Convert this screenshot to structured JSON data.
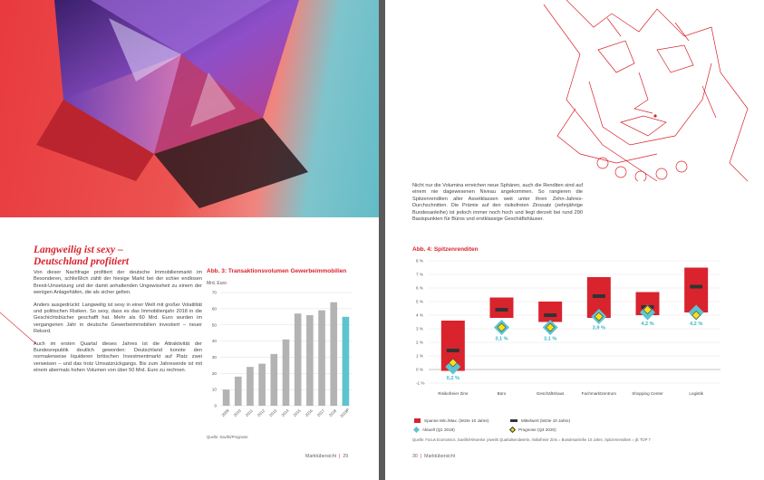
{
  "left_page": {
    "headline_line1": "Langweilig ist sexy –",
    "headline_line2": "Deutschland profitiert",
    "paragraphs": [
      "Von dieser Nachfrage profitiert der deutsche Immobilienmarkt im Besonderen, schließlich zählt der hiesige Markt bei der schier endlosen Brexit-Umsetzung und der damit anhaltenden Ungewissheit zu einem der wenigen Anlagehäfen, die als sicher gelten.",
      "Anders ausgedrückt: Langweilig ist sexy in einer Welt mit großer Volatilität und politischen Risiken. So sexy, dass es das Immobilienjahr 2018 in die Geschichtsbücher geschafft hat. Mehr als 60 Mrd. Euro wurden im vergangenen Jahr in deutsche Gewerbeimmobilien investiert – neuer Rekord.",
      "Auch im ersten Quartal dieses Jahres ist die Attraktivität der Bundesrepublik deutlich geworden: Deutschland konnte den normalerweise liquideren britischen Investmentmarkt auf Platz zwei verweisen – und das trotz Umsatzrückgangs. Bis zum Jahresende ist mit einem abermals hohen Volumen von über 50 Mrd. Euro zu rechnen."
    ],
    "chart_title": "Abb. 3: Transaktionsvolumen Gewerbeimmobilien",
    "unit_label": "Mrd. Euro",
    "source": "Quelle: Savills/Prognose",
    "footer_section": "Marktübersicht",
    "footer_page": "29"
  },
  "right_page": {
    "paragraph": "Nicht nur die Volumina erreichen neue Sphären, auch die Renditen sind auf einem nie dagewesenen Niveau angekommen. So rangieren die Spitzenrenditen aller Assetklassen weit unter ihren Zehn-Jahres-Durchschnitten. Die Prämie auf den risikofreien Zinssatz (zehnjährige Bundesanleihe) ist jedoch immer noch hoch und liegt derzeit bei rund 290 Basispunkten für Büros und erstklassige Geschäftshäuser.",
    "chart_title": "Abb. 4: Spitzenrenditen",
    "legend": {
      "range": "Spanne Min./Max. (letzte 10 Jahre)",
      "mean": "Mittelwert (letzte 10 Jahre)",
      "current": "Aktuell (Q1 2019)",
      "forecast": "Prognose (Q4 2020)"
    },
    "source": "Quelle: Focus Economics, Savills/Hinweise: jeweils Quartalsendwerte, risikofreier Zins = Bundesanleihe 10 Jahre, Spitzenrenditen = jE TOP 7",
    "footer_page": "30",
    "footer_section": "Marktübersicht"
  },
  "colors": {
    "accent_red": "#d9232d",
    "bar_grey": "#b3b3b3",
    "bar_teal": "#5cc4cf",
    "diamond_yellow": "#f5e01a",
    "mean_dark": "#333333"
  },
  "chart_data": [
    {
      "type": "bar",
      "title": "Abb. 3: Transaktionsvolumen Gewerbeimmobilien",
      "ylabel": "Mrd. Euro",
      "categories": [
        "2009",
        "2010",
        "2011",
        "2012",
        "2013",
        "2014",
        "2015",
        "2016",
        "2017",
        "2018",
        "2019P"
      ],
      "values": [
        10,
        18,
        24,
        26,
        32,
        41,
        57,
        56,
        59,
        64,
        55
      ],
      "highlight_last": true,
      "yticks": [
        0,
        10,
        20,
        30,
        40,
        50,
        60,
        70
      ],
      "ylim": [
        0,
        70
      ],
      "grid": true
    },
    {
      "type": "range",
      "title": "Abb. 4: Spitzenrenditen",
      "categories": [
        "Risikofreier Zins",
        "Büro",
        "Geschäftshaus",
        "Fachmarktzentrum",
        "Shopping Center",
        "Logistik"
      ],
      "range_min": [
        -0.1,
        3.8,
        3.5,
        3.8,
        4.0,
        4.2
      ],
      "range_max": [
        3.6,
        5.3,
        5.0,
        6.8,
        5.7,
        7.5
      ],
      "mean": [
        1.4,
        4.4,
        4.0,
        5.4,
        4.6,
        6.1
      ],
      "current": [
        0.2,
        3.1,
        3.1,
        3.9,
        4.2,
        4.2
      ],
      "current_labels": [
        "0,2 %",
        "3,1 %",
        "3,1 %",
        "3,9 %",
        "4,2 %",
        "4,2 %"
      ],
      "forecast": [
        0.5,
        3.1,
        3.1,
        3.9,
        4.4,
        4.0
      ],
      "yticks": [
        "-1 %",
        "0 %",
        "1 %",
        "2 %",
        "3 %",
        "4 %",
        "5 %",
        "6 %",
        "7 %",
        "8 %"
      ],
      "ylim": [
        -1,
        8
      ],
      "grid": true
    }
  ]
}
